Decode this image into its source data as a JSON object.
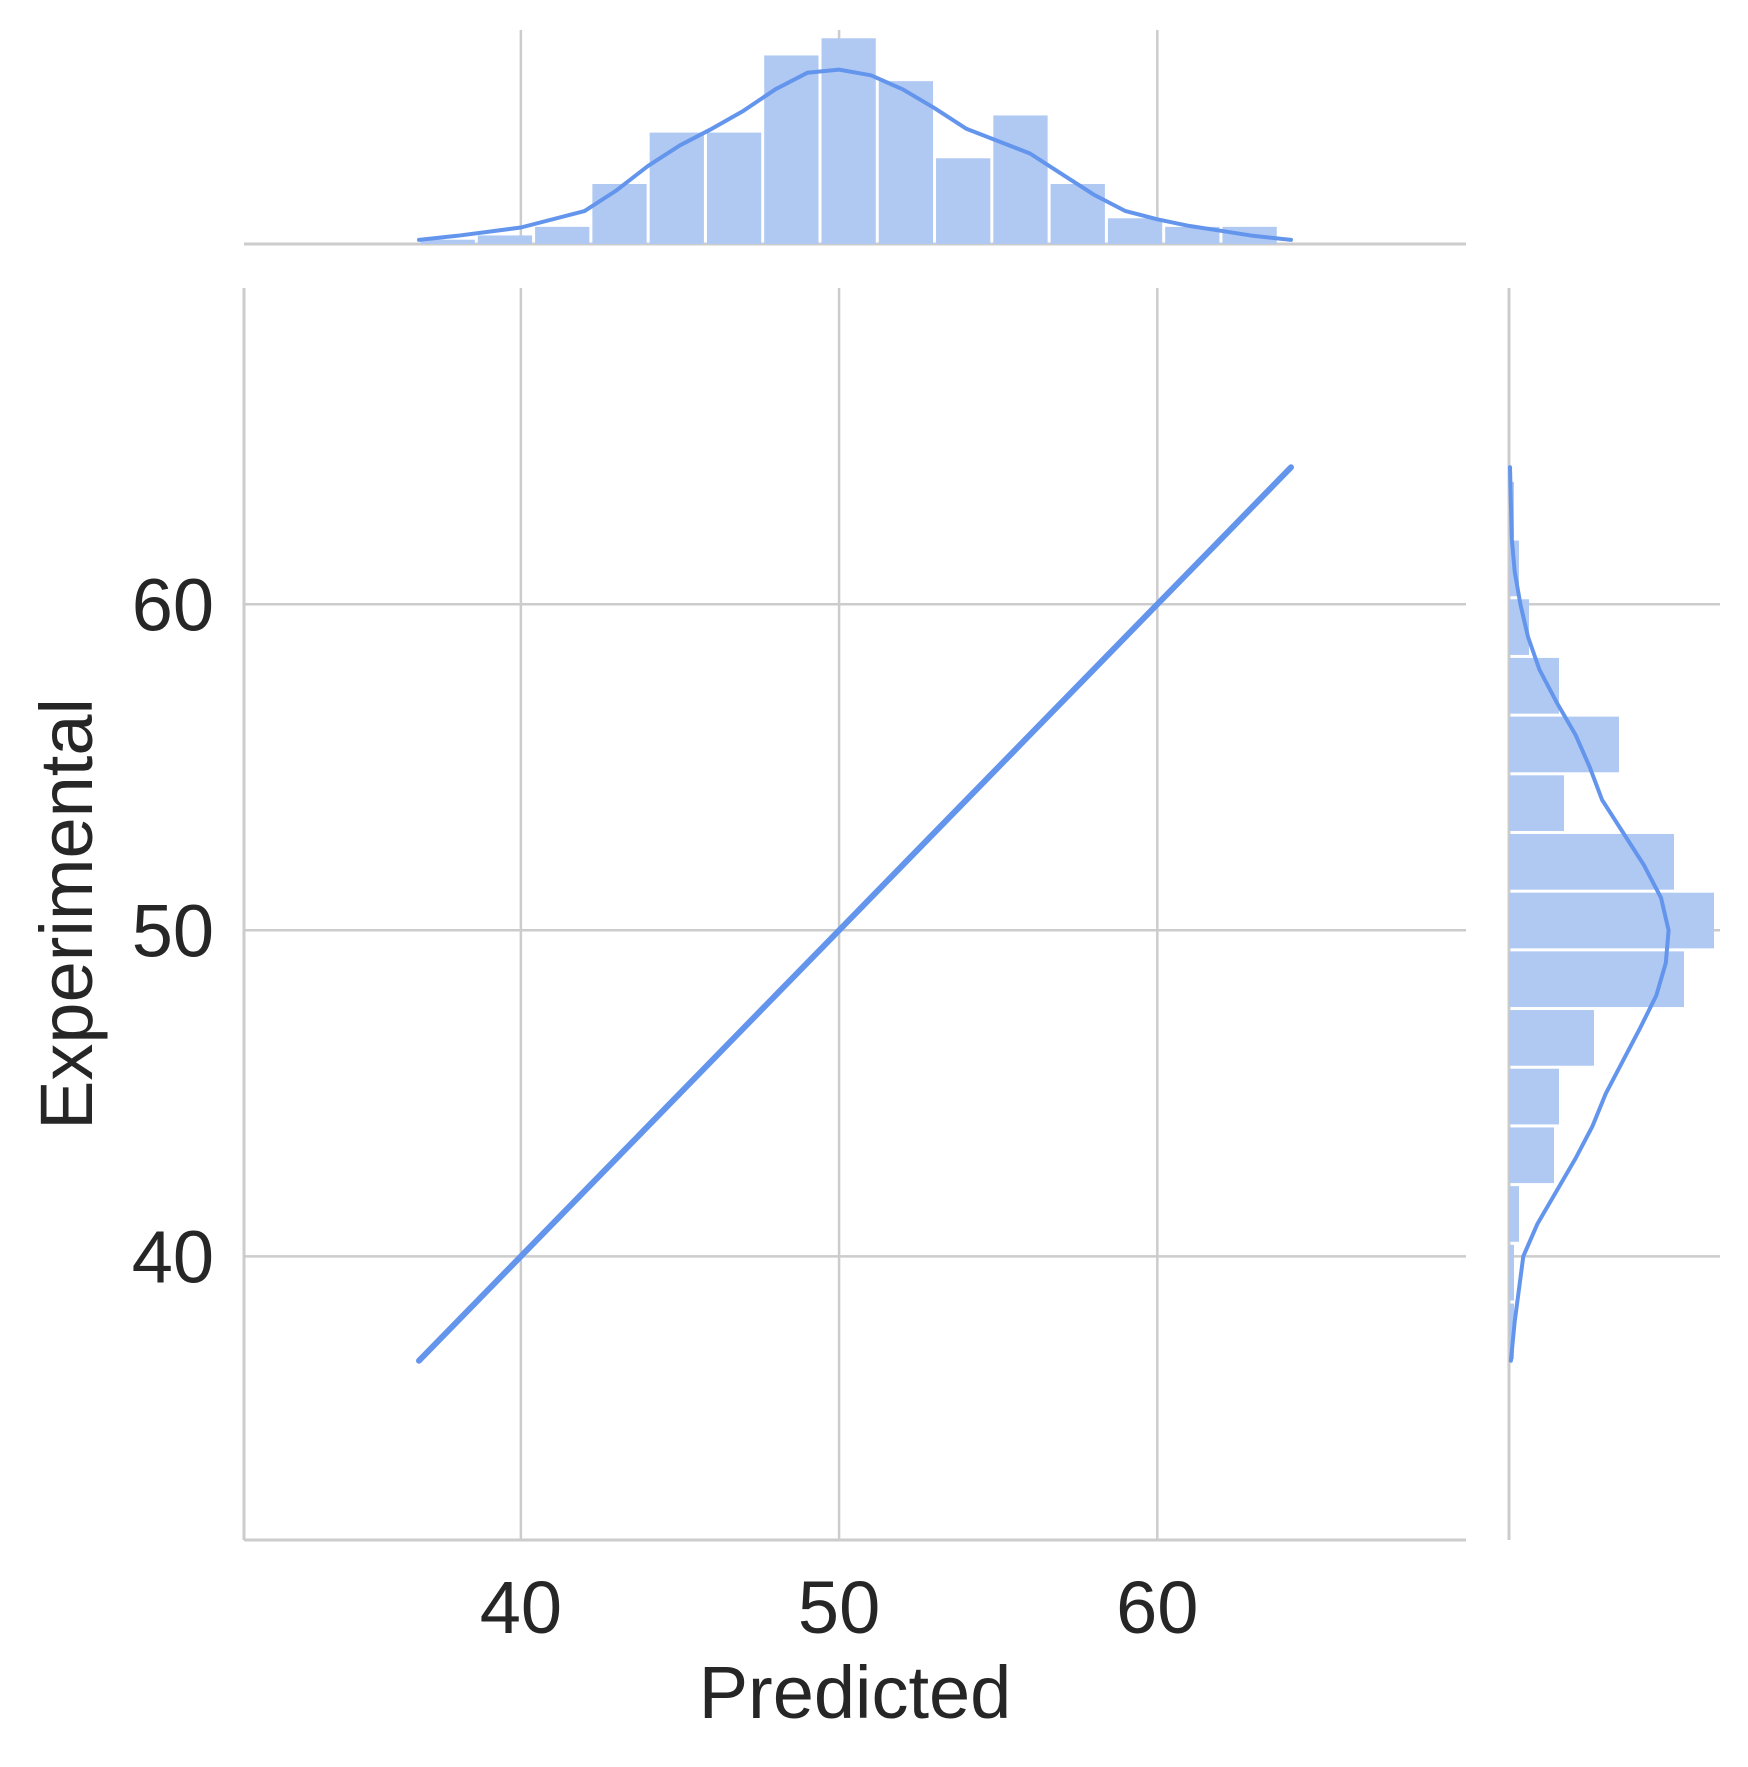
{
  "colors": {
    "series": "#6495ed",
    "bar_fill": "#b0c9f3",
    "grid": "#cccccc",
    "text": "#262626",
    "background": "#ffffff"
  },
  "chart_data": {
    "type": "scatter",
    "subtype": "jointplot",
    "title": "",
    "xlabel": "Predicted",
    "ylabel": "Experimental",
    "xlim": [
      31.3,
      69.7
    ],
    "ylim": [
      31.3,
      69.7
    ],
    "xticks": [
      40,
      50,
      60
    ],
    "yticks": [
      40,
      50,
      60
    ],
    "xtick_labels": [
      "40",
      "50",
      "60"
    ],
    "ytick_labels": [
      "40",
      "50",
      "60"
    ],
    "grid": true,
    "series": [
      {
        "x": [
          36.8,
          40.0,
          42.0,
          44.0,
          46.0,
          48.0,
          50.0,
          52.0,
          54.0,
          56.0,
          58.0,
          60.0,
          62.0,
          64.2
        ],
        "y": [
          36.8,
          40.0,
          42.0,
          44.0,
          46.0,
          48.0,
          50.0,
          52.0,
          54.0,
          56.0,
          58.0,
          60.0,
          62.0,
          64.2
        ]
      }
    ],
    "marginal_x": {
      "type": "histogram",
      "bin_edges": [
        36.8,
        38.6,
        40.4,
        42.2,
        44.0,
        45.8,
        47.6,
        49.4,
        51.2,
        53.0,
        54.8,
        56.6,
        58.4,
        60.2,
        62.0,
        63.8
      ],
      "counts": [
        0.5,
        1,
        2,
        7,
        13,
        13,
        22,
        24,
        19,
        10,
        15,
        7,
        3,
        2,
        2
      ],
      "kde": {
        "x": [
          36.8,
          38.0,
          40.0,
          42.0,
          43.0,
          44.0,
          45.0,
          46.0,
          47.0,
          48.0,
          49.0,
          50.0,
          51.0,
          52.0,
          53.0,
          54.0,
          55.0,
          56.0,
          57.0,
          58.0,
          59.0,
          60.0,
          61.0,
          62.0,
          63.0,
          64.2
        ],
        "density": [
          0.5,
          1.0,
          2.0,
          4.0,
          6.5,
          9.5,
          12.0,
          14.0,
          16.2,
          18.8,
          20.8,
          21.2,
          20.5,
          18.8,
          16.5,
          14.0,
          12.5,
          11.0,
          8.5,
          6.0,
          4.0,
          3.0,
          2.2,
          1.6,
          1.0,
          0.5
        ]
      }
    },
    "marginal_y": {
      "type": "histogram",
      "bin_edges": [
        36.8,
        38.6,
        40.4,
        42.2,
        44.0,
        45.8,
        47.6,
        49.4,
        51.2,
        53.0,
        54.8,
        56.6,
        58.4,
        60.2,
        62.0,
        63.8
      ],
      "counts": [
        0.5,
        0.5,
        1,
        4.5,
        5,
        8.5,
        17.5,
        20.5,
        16.5,
        5.5,
        11,
        5,
        2,
        1,
        0.5
      ],
      "kde": {
        "y": [
          36.8,
          38.0,
          40.0,
          41.0,
          42.0,
          43.0,
          44.0,
          45.0,
          46.0,
          47.0,
          48.0,
          49.0,
          50.0,
          51.0,
          52.0,
          53.0,
          54.0,
          55.0,
          56.0,
          57.0,
          58.0,
          59.0,
          60.0,
          61.0,
          62.0,
          64.2
        ],
        "density": [
          0.2,
          0.6,
          1.5,
          3.0,
          5.0,
          7.0,
          8.8,
          10.2,
          12.0,
          13.8,
          15.5,
          16.5,
          16.8,
          16.0,
          14.2,
          12.0,
          9.8,
          8.5,
          7.0,
          5.0,
          3.2,
          2.0,
          1.2,
          0.6,
          0.3,
          0.1
        ]
      }
    }
  }
}
